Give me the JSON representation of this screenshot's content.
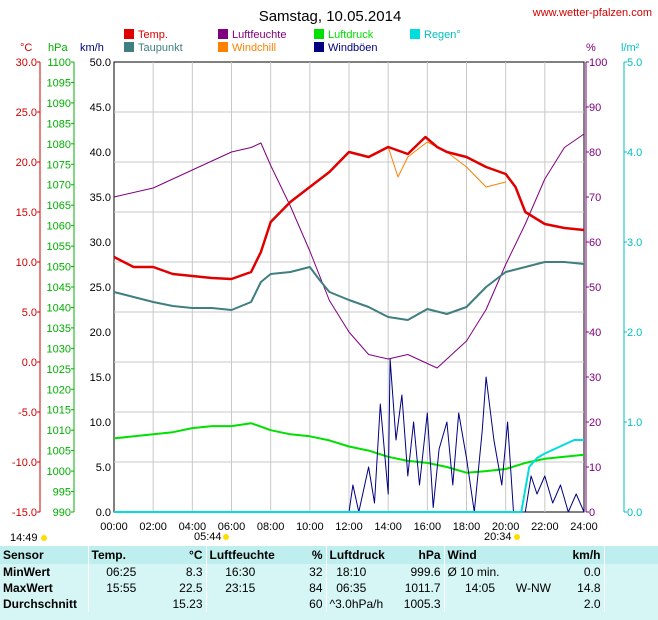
{
  "header": {
    "date_title": "Samstag, 10.05.2014",
    "source_url": "www.wetter-pfalzen.com"
  },
  "legend": [
    {
      "name": "Temp.",
      "color": "#e00000"
    },
    {
      "name": "Taupunkt",
      "color": "#3f7f7f"
    },
    {
      "name": "Luftfeuchte",
      "color": "#800080"
    },
    {
      "name": "Windchill",
      "color": "#ff8000"
    },
    {
      "name": "Luftdruck",
      "color": "#00e000"
    },
    {
      "name": "Windböen",
      "color": "#000080"
    },
    {
      "name": "Regen°",
      "color": "#00dddd"
    }
  ],
  "axis_units": {
    "temp": "°C",
    "pressure": "hPa",
    "wind": "km/h",
    "humidity": "%",
    "rain": "l/m²"
  },
  "sun": {
    "sunrise_label": "05:44",
    "sunset_label": "20:34",
    "info_label": "14:49"
  },
  "stats": {
    "headers": {
      "sensor": "Sensor",
      "temp": "Temp.",
      "temp_unit": "°C",
      "hum": "Luftfeuchte",
      "hum_unit": "%",
      "press": "Luftdruck",
      "press_unit": "hPa",
      "wind": "Wind",
      "wind_unit": "km/h"
    },
    "rows": [
      {
        "label": "MinWert",
        "t_time": "06:25",
        "t_val": "8.3",
        "h_time": "16:30",
        "h_val": "32",
        "p_time": "18:10",
        "p_val": "999.6",
        "w_time": "Ø 10 min.",
        "w_val": "0.0"
      },
      {
        "label": "MaxWert",
        "t_time": "15:55",
        "t_val": "22.5",
        "h_time": "23:15",
        "h_val": "84",
        "p_time": "06:35",
        "p_val": "1011.7",
        "w_time": "14:05",
        "w_dir": "W-NW",
        "w_val": "14.8"
      },
      {
        "label": "Durchschnitt",
        "t_time": "",
        "t_val": "15.23",
        "h_time": "",
        "h_val": "60",
        "p_time": "^3.0hPa/h",
        "p_val": "1005.3",
        "w_time": "",
        "w_val": "2.0"
      }
    ]
  },
  "chart_data": {
    "type": "line",
    "x_ticks": [
      "00:00",
      "02:00",
      "04:00",
      "06:00",
      "08:00",
      "10:00",
      "12:00",
      "14:00",
      "16:00",
      "18:00",
      "20:00",
      "22:00",
      "24:00"
    ],
    "axes": {
      "temp": {
        "unit": "°C",
        "range": [
          -15,
          30
        ],
        "ticks": [
          "30.0",
          "25.0",
          "20.0",
          "15.0",
          "10.0",
          "5.0",
          "0.0",
          "-5.0",
          "-10.0",
          "-15.0"
        ]
      },
      "pressure": {
        "unit": "hPa",
        "range": [
          990,
          1100
        ],
        "ticks": [
          "1100",
          "1095",
          "1090",
          "1085",
          "1080",
          "1075",
          "1070",
          "1065",
          "1060",
          "1055",
          "1050",
          "1045",
          "1040",
          "1035",
          "1030",
          "1025",
          "1020",
          "1015",
          "1010",
          "1005",
          "1000",
          "995",
          "990"
        ]
      },
      "wind": {
        "unit": "km/h",
        "range": [
          0,
          50
        ],
        "ticks": [
          "50.0",
          "45.0",
          "40.0",
          "35.0",
          "30.0",
          "25.0",
          "20.0",
          "15.0",
          "10.0",
          "5.0",
          "0.0"
        ]
      },
      "humidity": {
        "unit": "%",
        "range": [
          0,
          100
        ],
        "ticks": [
          "100",
          "90",
          "80",
          "70",
          "60",
          "50",
          "40",
          "30",
          "20",
          "10",
          "0"
        ]
      },
      "rain": {
        "unit": "l/m²",
        "range": [
          0,
          5
        ],
        "ticks": [
          "5.0",
          "4.0",
          "3.0",
          "2.0",
          "1.0",
          "0.0"
        ]
      }
    },
    "series": [
      {
        "name": "Temp.",
        "axis": "temp",
        "color": "#e00000",
        "points": [
          [
            0,
            10.5
          ],
          [
            1,
            9.5
          ],
          [
            2,
            9.5
          ],
          [
            3,
            8.8
          ],
          [
            4,
            8.6
          ],
          [
            5,
            8.4
          ],
          [
            6,
            8.3
          ],
          [
            7,
            9.0
          ],
          [
            7.5,
            11
          ],
          [
            8,
            14
          ],
          [
            9,
            16
          ],
          [
            10,
            17.5
          ],
          [
            11,
            19
          ],
          [
            12,
            21
          ],
          [
            13,
            20.5
          ],
          [
            14,
            21.5
          ],
          [
            15,
            20.8
          ],
          [
            15.9,
            22.5
          ],
          [
            16.5,
            21.5
          ],
          [
            17,
            21
          ],
          [
            18,
            20.5
          ],
          [
            19,
            19.5
          ],
          [
            20,
            18.8
          ],
          [
            20.5,
            17.5
          ],
          [
            21,
            15
          ],
          [
            22,
            13.8
          ],
          [
            23,
            13.4
          ],
          [
            24,
            13.2
          ]
        ]
      },
      {
        "name": "Taupunkt",
        "axis": "temp",
        "color": "#3f7f7f",
        "points": [
          [
            0,
            7.0
          ],
          [
            1,
            6.5
          ],
          [
            2,
            6.0
          ],
          [
            3,
            5.6
          ],
          [
            4,
            5.4
          ],
          [
            5,
            5.4
          ],
          [
            6,
            5.2
          ],
          [
            7,
            6.0
          ],
          [
            7.5,
            8.0
          ],
          [
            8,
            8.8
          ],
          [
            9,
            9.0
          ],
          [
            10,
            9.5
          ],
          [
            10.5,
            8.2
          ],
          [
            11,
            7.0
          ],
          [
            12,
            6.2
          ],
          [
            13,
            5.5
          ],
          [
            14,
            4.5
          ],
          [
            15,
            4.2
          ],
          [
            16,
            5.3
          ],
          [
            17,
            4.8
          ],
          [
            18,
            5.5
          ],
          [
            19,
            7.5
          ],
          [
            20,
            9.0
          ],
          [
            21,
            9.5
          ],
          [
            22,
            10.0
          ],
          [
            23,
            10.0
          ],
          [
            24,
            9.8
          ]
        ]
      },
      {
        "name": "Luftfeuchte",
        "axis": "humidity",
        "color": "#800080",
        "points": [
          [
            0,
            70
          ],
          [
            2,
            72
          ],
          [
            3,
            74
          ],
          [
            4,
            76
          ],
          [
            5,
            78
          ],
          [
            6,
            80
          ],
          [
            7,
            81
          ],
          [
            7.5,
            82
          ],
          [
            8,
            77
          ],
          [
            9,
            68
          ],
          [
            10,
            58
          ],
          [
            11,
            47
          ],
          [
            12,
            40
          ],
          [
            13,
            35
          ],
          [
            14,
            34
          ],
          [
            15,
            35
          ],
          [
            16,
            33
          ],
          [
            16.5,
            32
          ],
          [
            17,
            34
          ],
          [
            18,
            38
          ],
          [
            19,
            45
          ],
          [
            20,
            55
          ],
          [
            21,
            64
          ],
          [
            22,
            74
          ],
          [
            23,
            81
          ],
          [
            24,
            84
          ]
        ]
      },
      {
        "name": "Windchill",
        "axis": "temp",
        "color": "#ff8000",
        "points": [
          [
            14,
            21.5
          ],
          [
            14.5,
            18.5
          ],
          [
            15,
            20.5
          ],
          [
            16,
            22
          ],
          [
            17,
            21
          ],
          [
            18,
            19.5
          ],
          [
            19,
            17.5
          ],
          [
            20,
            18.0
          ]
        ]
      },
      {
        "name": "Luftdruck",
        "axis": "pressure",
        "color": "#00e000",
        "points": [
          [
            0,
            1008
          ],
          [
            2,
            1009
          ],
          [
            3,
            1009.5
          ],
          [
            4,
            1010.5
          ],
          [
            5,
            1011
          ],
          [
            6,
            1011
          ],
          [
            7,
            1011.7
          ],
          [
            8,
            1010
          ],
          [
            9,
            1009
          ],
          [
            10,
            1008.5
          ],
          [
            11,
            1007.5
          ],
          [
            12,
            1006
          ],
          [
            13,
            1005
          ],
          [
            14,
            1003.5
          ],
          [
            15,
            1002.5
          ],
          [
            16,
            1002
          ],
          [
            17,
            1001
          ],
          [
            18,
            999.6
          ],
          [
            19,
            1000
          ],
          [
            20,
            1000.5
          ],
          [
            21,
            1002
          ],
          [
            22,
            1003
          ],
          [
            23,
            1003.5
          ],
          [
            24,
            1004
          ]
        ]
      },
      {
        "name": "Windböen",
        "axis": "wind",
        "color": "#000080",
        "points": [
          [
            0,
            0
          ],
          [
            12,
            0
          ],
          [
            12.2,
            3
          ],
          [
            12.5,
            0
          ],
          [
            13,
            5
          ],
          [
            13.3,
            1
          ],
          [
            13.6,
            12
          ],
          [
            14,
            2
          ],
          [
            14.1,
            17
          ],
          [
            14.4,
            8
          ],
          [
            14.7,
            13
          ],
          [
            15,
            4
          ],
          [
            15.3,
            10
          ],
          [
            15.6,
            3
          ],
          [
            16,
            11
          ],
          [
            16.3,
            0.5
          ],
          [
            16.6,
            7
          ],
          [
            17,
            10
          ],
          [
            17.3,
            3
          ],
          [
            17.6,
            11
          ],
          [
            18,
            6
          ],
          [
            18.4,
            0
          ],
          [
            18.8,
            9
          ],
          [
            19,
            15
          ],
          [
            19.4,
            8
          ],
          [
            19.8,
            3
          ],
          [
            20.1,
            10
          ],
          [
            20.4,
            0
          ],
          [
            21,
            0
          ],
          [
            21.3,
            4
          ],
          [
            21.6,
            2
          ],
          [
            22,
            4
          ],
          [
            22.4,
            1
          ],
          [
            22.8,
            3
          ],
          [
            23.2,
            0
          ],
          [
            23.6,
            2
          ],
          [
            24,
            0
          ]
        ]
      },
      {
        "name": "Regen°",
        "axis": "rain",
        "color": "#00dddd",
        "points": [
          [
            0,
            0
          ],
          [
            20.8,
            0
          ],
          [
            21.2,
            0.5
          ],
          [
            21.6,
            0.6
          ],
          [
            22,
            0.65
          ],
          [
            22.5,
            0.7
          ],
          [
            23,
            0.75
          ],
          [
            23.5,
            0.8
          ],
          [
            24,
            0.8
          ]
        ]
      }
    ]
  }
}
